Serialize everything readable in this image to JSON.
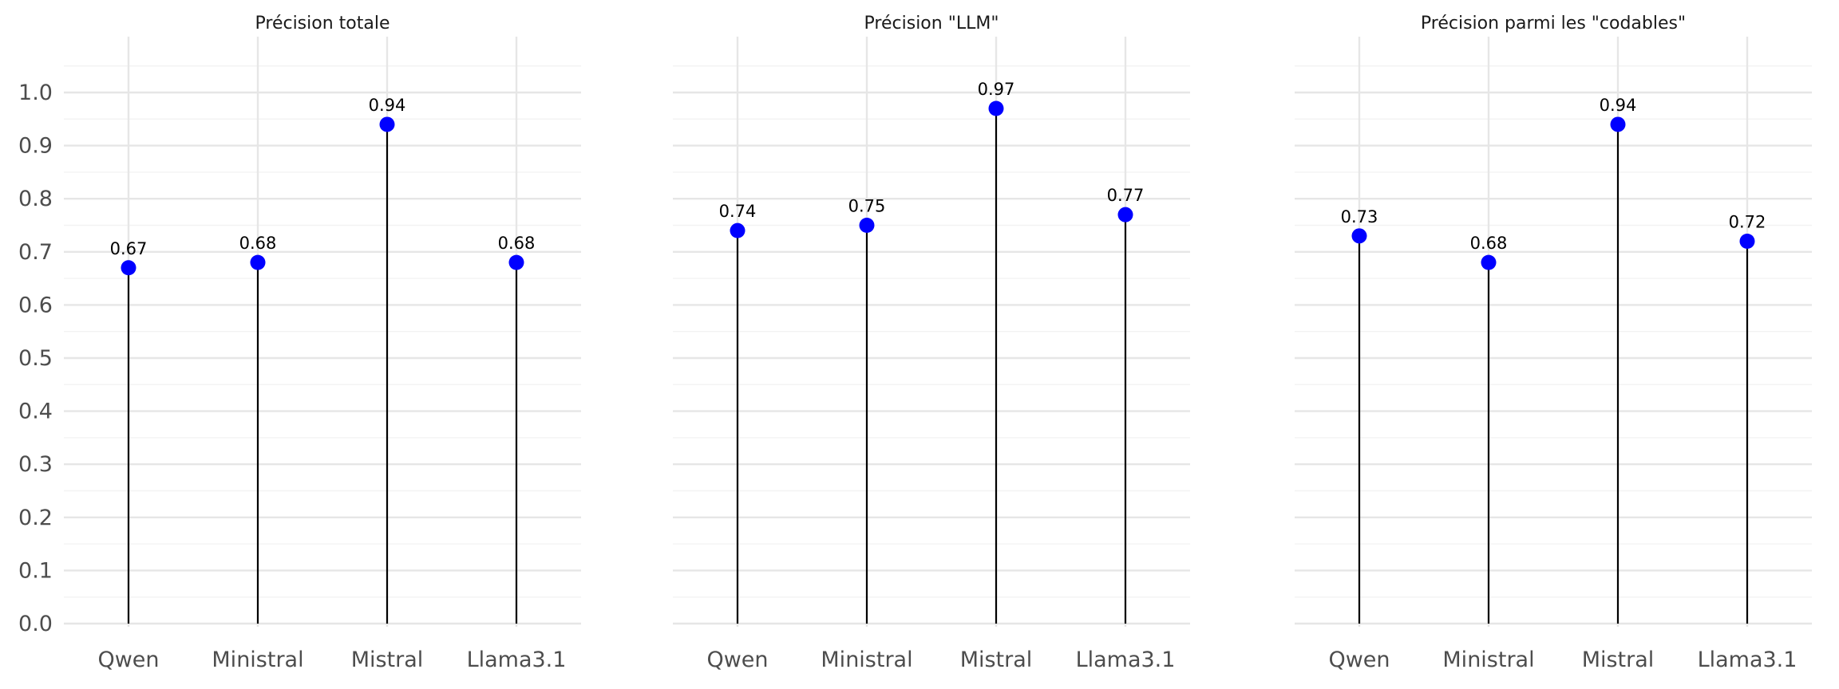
{
  "chart_data": [
    {
      "type": "lollipop",
      "title": "Précision totale",
      "categories": [
        "Qwen",
        "Ministral",
        "Mistral",
        "Llama3.1"
      ],
      "values": [
        0.67,
        0.68,
        0.94,
        0.68
      ],
      "labels": [
        "0.67",
        "0.68",
        "0.94",
        "0.68"
      ],
      "ylim": [
        0.0,
        1.0
      ],
      "yticks": [
        "0.0",
        "0.1",
        "0.2",
        "0.3",
        "0.4",
        "0.5",
        "0.6",
        "0.7",
        "0.8",
        "0.9",
        "1.0"
      ],
      "grid": true,
      "marker_color": "#0000ff",
      "stem_color": "#000000"
    },
    {
      "type": "lollipop",
      "title": "Précision \"LLM\"",
      "categories": [
        "Qwen",
        "Ministral",
        "Mistral",
        "Llama3.1"
      ],
      "values": [
        0.74,
        0.75,
        0.97,
        0.77
      ],
      "labels": [
        "0.74",
        "0.75",
        "0.97",
        "0.77"
      ],
      "ylim": [
        0.0,
        1.0
      ],
      "grid": true,
      "marker_color": "#0000ff",
      "stem_color": "#000000"
    },
    {
      "type": "lollipop",
      "title": "Précision parmi les \"codables\"",
      "categories": [
        "Qwen",
        "Ministral",
        "Mistral",
        "Llama3.1"
      ],
      "values": [
        0.73,
        0.68,
        0.94,
        0.72
      ],
      "labels": [
        "0.73",
        "0.68",
        "0.94",
        "0.72"
      ],
      "ylim": [
        0.0,
        1.0
      ],
      "grid": true,
      "marker_color": "#0000ff",
      "stem_color": "#000000"
    }
  ]
}
